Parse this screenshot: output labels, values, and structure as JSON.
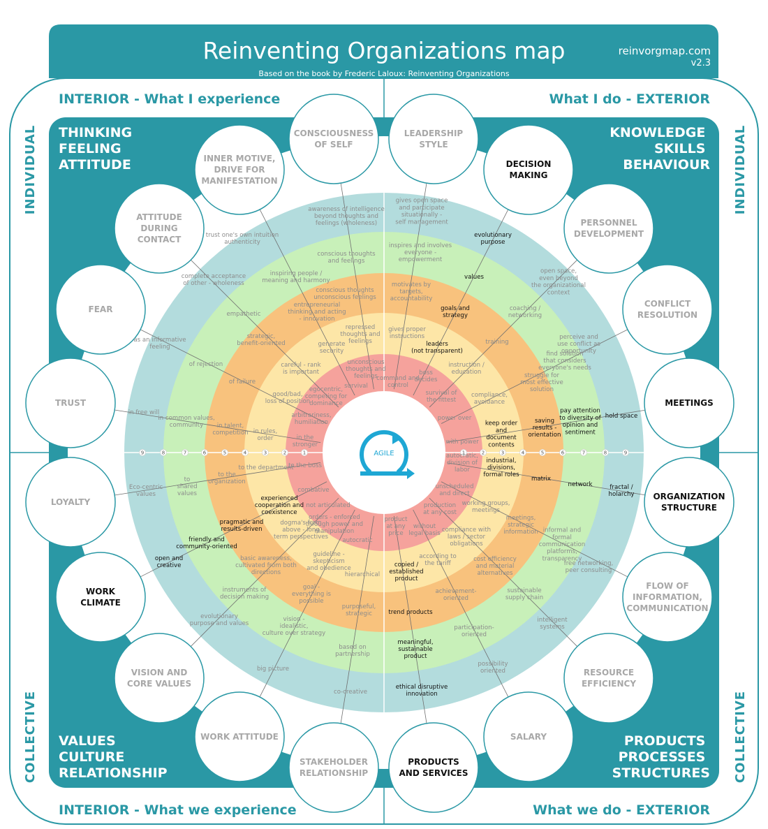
{
  "header": {
    "title": "Reinventing Organizations map",
    "subtitle": "Based on the book by Frederic Laloux: Reinventing Organizations",
    "site": "reinvorgmap.com",
    "version": "v2.3"
  },
  "quadrant_titles": {
    "top_left": "INTERIOR - What I experience",
    "top_right": "What I do - EXTERIOR",
    "bottom_left": "INTERIOR - What we experience",
    "bottom_right": "What we do - EXTERIOR"
  },
  "side_labels": {
    "left_top": "INDIVIDUAL",
    "right_top": "INDIVIDUAL",
    "left_bottom": "COLLECTIVE",
    "right_bottom": "COLLECTIVE"
  },
  "corner_labels": {
    "top_left": [
      "THINKING",
      "FEELING",
      "ATTITUDE"
    ],
    "top_right": [
      "KNOWLEDGE",
      "SKILLS",
      "BEHAVIOUR"
    ],
    "bottom_left": [
      "VALUES",
      "CULTURE",
      "RELATIONSHIP"
    ],
    "bottom_right": [
      "PRODUCTS",
      "PROCESSES",
      "STRUCTURES"
    ]
  },
  "center": {
    "label": "AGILE"
  },
  "colors": {
    "teal": "#2a98a5",
    "ring_teal": "#b3dcdd",
    "ring_green": "#c8f0b9",
    "ring_orange": "#f8c27d",
    "ring_yellow": "#fde6a7",
    "ring_red": "#f5a29c",
    "grey_text": "#a8a8a8",
    "dark_text": "#111111"
  },
  "scale_numbers": [
    "9",
    "8",
    "7",
    "6",
    "5",
    "4",
    "3",
    "2",
    "1"
  ],
  "topics": [
    {
      "name": "topic-consciousness-of-self",
      "lines": [
        "CONSCIOUSNESS",
        "OF SELF"
      ],
      "active": false
    },
    {
      "name": "topic-leadership-style",
      "lines": [
        "LEADERSHIP",
        "STYLE"
      ],
      "active": false
    },
    {
      "name": "topic-decision-making",
      "lines": [
        "DECISION",
        "MAKING"
      ],
      "active": true
    },
    {
      "name": "topic-personnel-development",
      "lines": [
        "PERSONNEL",
        "DEVELOPMENT"
      ],
      "active": false
    },
    {
      "name": "topic-conflict-resolution",
      "lines": [
        "CONFLICT",
        "RESOLUTION"
      ],
      "active": false
    },
    {
      "name": "topic-meetings",
      "lines": [
        "MEETINGS"
      ],
      "active": true
    },
    {
      "name": "topic-organization-structure",
      "lines": [
        "ORGANIZATION",
        "STRUCTURE"
      ],
      "active": true
    },
    {
      "name": "topic-flow-of-information",
      "lines": [
        "FLOW OF",
        "INFORMATION,",
        "COMMUNICATION"
      ],
      "active": false
    },
    {
      "name": "topic-resource-efficiency",
      "lines": [
        "RESOURCE",
        "EFFICIENCY"
      ],
      "active": false
    },
    {
      "name": "topic-salary",
      "lines": [
        "SALARY"
      ],
      "active": false
    },
    {
      "name": "topic-products-and-services",
      "lines": [
        "PRODUCTS",
        "AND SERVICES"
      ],
      "active": true
    },
    {
      "name": "topic-stakeholder-relationship",
      "lines": [
        "STAKEHOLDER",
        "RELATIONSHIP"
      ],
      "active": false
    },
    {
      "name": "topic-work-attitude",
      "lines": [
        "WORK ATTITUDE"
      ],
      "active": false
    },
    {
      "name": "topic-vision-and-core-values",
      "lines": [
        "VISION AND",
        "CORE VALUES"
      ],
      "active": false
    },
    {
      "name": "topic-work-climate",
      "lines": [
        "WORK",
        "CLIMATE"
      ],
      "active": true
    },
    {
      "name": "topic-loyalty",
      "lines": [
        "LOYALTY"
      ],
      "active": false
    },
    {
      "name": "topic-trust",
      "lines": [
        "TRUST"
      ],
      "active": false
    },
    {
      "name": "topic-fear",
      "lines": [
        "FEAR"
      ],
      "active": false
    },
    {
      "name": "topic-attitude-during-contact",
      "lines": [
        "ATTITUDE",
        "DURING",
        "CONTACT"
      ],
      "active": false
    },
    {
      "name": "topic-inner-motive",
      "lines": [
        "INNER MOTIVE,",
        "DRIVE FOR",
        "MANIFESTATION"
      ],
      "active": false
    }
  ],
  "labels": [
    {
      "t": [
        "awareness of intelligence",
        "beyond thoughts and",
        "feelings (wholeness)"
      ],
      "d": 0
    },
    {
      "t": [
        "trust one's own intuition",
        "authenticity"
      ],
      "d": 0
    },
    {
      "t": [
        "conscious thoughts",
        "and feelings"
      ],
      "d": 0
    },
    {
      "t": [
        "inspiring people /",
        "meaning and harmony"
      ],
      "d": 0
    },
    {
      "t": [
        "complete acceptance",
        "of other - wholeness"
      ],
      "d": 0
    },
    {
      "t": [
        "conscious thoughts",
        "unconscious feelings"
      ],
      "d": 0
    },
    {
      "t": [
        "entrepreneurial",
        "thinking and acting",
        "- innovation"
      ],
      "d": 0
    },
    {
      "t": [
        "empathetic"
      ],
      "d": 0
    },
    {
      "t": [
        "repressed",
        "thoughts and",
        "feelings"
      ],
      "d": 0
    },
    {
      "t": [
        "generate",
        "security"
      ],
      "d": 0
    },
    {
      "t": [
        "strategic,",
        "benefit-oriented"
      ],
      "d": 0
    },
    {
      "t": [
        "as an informative",
        "feeling"
      ],
      "d": 0
    },
    {
      "t": [
        "unconscious",
        "thoughts and",
        "feelings"
      ],
      "d": 0
    },
    {
      "t": [
        "careful - rank",
        "is important"
      ],
      "d": 0
    },
    {
      "t": [
        "of rejection"
      ],
      "d": 0
    },
    {
      "t": [
        "survival"
      ],
      "d": 0
    },
    {
      "t": [
        "egocentric,",
        "competing for",
        "dominance"
      ],
      "d": 0
    },
    {
      "t": [
        "of failure"
      ],
      "d": 0
    },
    {
      "t": [
        "good/bad,",
        "loss of position"
      ],
      "d": 0
    },
    {
      "t": [
        "arbitrariness,",
        "humiliation"
      ],
      "d": 0
    },
    {
      "t": [
        "in free will"
      ],
      "d": 0
    },
    {
      "t": [
        "in common values,",
        "community"
      ],
      "d": 0
    },
    {
      "t": [
        "in talent,",
        "competition"
      ],
      "d": 0
    },
    {
      "t": [
        "in rules,",
        "order"
      ],
      "d": 0
    },
    {
      "t": [
        "in the",
        "stronger"
      ],
      "d": 0
    },
    {
      "t": [
        "gives open space",
        "and participate",
        "situationally -",
        "self management"
      ],
      "d": 0
    },
    {
      "t": [
        "evolutionary",
        "purpose"
      ],
      "d": 1
    },
    {
      "t": [
        "inspires and involves",
        "everyone -",
        "empowerment"
      ],
      "d": 0
    },
    {
      "t": [
        "values"
      ],
      "d": 1
    },
    {
      "t": [
        "open space,",
        "even beyond",
        "the organizational",
        "context"
      ],
      "d": 0
    },
    {
      "t": [
        "motivates by",
        "targets,",
        "accountability"
      ],
      "d": 0
    },
    {
      "t": [
        "goals and",
        "strategy"
      ],
      "d": 1
    },
    {
      "t": [
        "coaching /",
        "networking"
      ],
      "d": 0
    },
    {
      "t": [
        "gives proper",
        "instructions"
      ],
      "d": 0
    },
    {
      "t": [
        "leaders",
        "(not transparent)"
      ],
      "d": 1
    },
    {
      "t": [
        "training"
      ],
      "d": 0
    },
    {
      "t": [
        "perceive and",
        "use conflict as",
        "opportunity"
      ],
      "d": 0
    },
    {
      "t": [
        "command and",
        "control"
      ],
      "d": 0
    },
    {
      "t": [
        "boss",
        "decides"
      ],
      "d": 0
    },
    {
      "t": [
        "instruction /",
        "education"
      ],
      "d": 0
    },
    {
      "t": [
        "find solution",
        "that considers",
        "everyone's needs"
      ],
      "d": 0
    },
    {
      "t": [
        "survival of",
        "the fittest"
      ],
      "d": 0
    },
    {
      "t": [
        "compliance,",
        "avoidance"
      ],
      "d": 0
    },
    {
      "t": [
        "struggle for",
        "most effective",
        "solution"
      ],
      "d": 0
    },
    {
      "t": [
        "power over"
      ],
      "d": 0
    },
    {
      "t": [
        "keep order",
        "and",
        "document",
        "contents"
      ],
      "d": 1
    },
    {
      "t": [
        "saving",
        "results -",
        "orientation"
      ],
      "d": 1
    },
    {
      "t": [
        "pay attention",
        "to diversity of",
        "opinion and",
        "sentiment"
      ],
      "d": 1
    },
    {
      "t": [
        "hold space"
      ],
      "d": 1
    },
    {
      "t": [
        "with power"
      ],
      "d": 0
    },
    {
      "t": [
        "autocratic,",
        "division of",
        "labor"
      ],
      "d": 0
    },
    {
      "t": [
        "industrial,",
        "divisions,",
        "formal roles"
      ],
      "d": 1
    },
    {
      "t": [
        "matrix"
      ],
      "d": 1
    },
    {
      "t": [
        "network"
      ],
      "d": 1
    },
    {
      "t": [
        "fractal /",
        "holarchy"
      ],
      "d": 1
    },
    {
      "t": [
        "Eco-centric",
        "values"
      ],
      "d": 0
    },
    {
      "t": [
        "to",
        "shared",
        "values"
      ],
      "d": 0
    },
    {
      "t": [
        "to the",
        "organization"
      ],
      "d": 0
    },
    {
      "t": [
        "to the department"
      ],
      "d": 0
    },
    {
      "t": [
        "to the boss"
      ],
      "d": 0
    },
    {
      "t": [
        "unscheduled",
        "and direct"
      ],
      "d": 0
    },
    {
      "t": [
        "working groups,",
        "meetings"
      ],
      "d": 0
    },
    {
      "t": [
        "combative"
      ],
      "d": 0
    },
    {
      "t": [
        "experienced",
        "cooperation and",
        "coexistence"
      ],
      "d": 1
    },
    {
      "t": [
        "not articulated"
      ],
      "d": 0
    },
    {
      "t": [
        "production",
        "at any cost"
      ],
      "d": 0
    },
    {
      "t": [
        "pragmatic and",
        "results-driven"
      ],
      "d": 1
    },
    {
      "t": [
        "orders - enforced",
        "through power and",
        "manipulation"
      ],
      "d": 0
    },
    {
      "t": [
        "dogma's from",
        "above - long",
        "term perspectives"
      ],
      "d": 0
    },
    {
      "t": [
        "friendly and",
        "community-oriented"
      ],
      "d": 1
    },
    {
      "t": [
        "product",
        "at any",
        "price"
      ],
      "d": 0
    },
    {
      "t": [
        "without",
        "legal basis"
      ],
      "d": 0
    },
    {
      "t": [
        "compliance with",
        "laws / sector",
        "obligations"
      ],
      "d": 0
    },
    {
      "t": [
        "meetings,",
        "strategic",
        "information"
      ],
      "d": 0
    },
    {
      "t": [
        "informal and",
        "formal",
        "communication",
        "platforms,",
        "transparency"
      ],
      "d": 0
    },
    {
      "t": [
        "open and",
        "creative"
      ],
      "d": 1
    },
    {
      "t": [
        "autocratic"
      ],
      "d": 0
    },
    {
      "t": [
        "basic awareness,",
        "cultivated from both",
        "directions"
      ],
      "d": 0
    },
    {
      "t": [
        "guideline -",
        "skepticism",
        "and obedience"
      ],
      "d": 0
    },
    {
      "t": [
        "hierarchical"
      ],
      "d": 0
    },
    {
      "t": [
        "copied /",
        "established",
        "product"
      ],
      "d": 1
    },
    {
      "t": [
        "according to",
        "the tariff"
      ],
      "d": 0
    },
    {
      "t": [
        "cost efficiency",
        "and material",
        "alternatives"
      ],
      "d": 0
    },
    {
      "t": [
        "free networking,",
        "peer consulting"
      ],
      "d": 0
    },
    {
      "t": [
        "instruments of",
        "decision making"
      ],
      "d": 0
    },
    {
      "t": [
        "goal -",
        "everything is",
        "possible"
      ],
      "d": 0
    },
    {
      "t": [
        "purposeful,",
        "strategic"
      ],
      "d": 0
    },
    {
      "t": [
        "trend products"
      ],
      "d": 1
    },
    {
      "t": [
        "achievement-",
        "oriented"
      ],
      "d": 0
    },
    {
      "t": [
        "sustainable",
        "supply chain"
      ],
      "d": 0
    },
    {
      "t": [
        "evolutionary",
        "purpose and values"
      ],
      "d": 0
    },
    {
      "t": [
        "vision -",
        "idealistic,",
        "culture over strategy"
      ],
      "d": 0
    },
    {
      "t": [
        "based on",
        "partnership"
      ],
      "d": 0
    },
    {
      "t": [
        "meaningful,",
        "sustainable",
        "product"
      ],
      "d": 1
    },
    {
      "t": [
        "participation-",
        "oriented"
      ],
      "d": 0
    },
    {
      "t": [
        "intelligent",
        "systems"
      ],
      "d": 0
    },
    {
      "t": [
        "big picture"
      ],
      "d": 0
    },
    {
      "t": [
        "possibility",
        "oriented"
      ],
      "d": 0
    },
    {
      "t": [
        "co-creative"
      ],
      "d": 0
    },
    {
      "t": [
        "ethical disruptive",
        "innovation"
      ],
      "d": 1
    }
  ]
}
